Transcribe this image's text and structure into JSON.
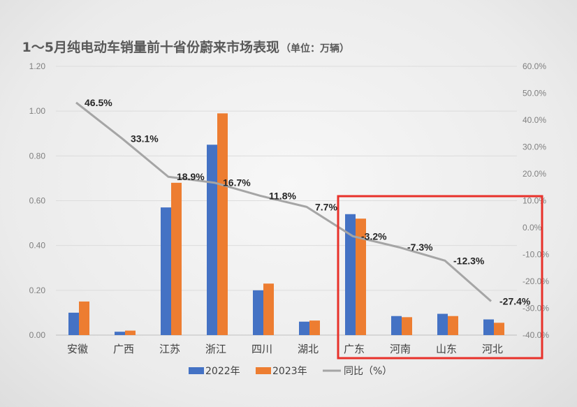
{
  "chart_data": {
    "type": "bar",
    "title": "1～5月纯电动车销量前十省份蔚来市场表现",
    "subtitle": "（单位：万辆）",
    "categories": [
      "安徽",
      "广西",
      "江苏",
      "浙江",
      "四川",
      "湖北",
      "广东",
      "河南",
      "山东",
      "河北"
    ],
    "series": [
      {
        "name": "2022年",
        "axis": "left",
        "color": "#4472c4",
        "values": [
          0.1,
          0.015,
          0.57,
          0.85,
          0.2,
          0.06,
          0.54,
          0.085,
          0.095,
          0.07
        ]
      },
      {
        "name": "2023年",
        "axis": "left",
        "color": "#ed7d31",
        "values": [
          0.15,
          0.02,
          0.68,
          0.99,
          0.23,
          0.065,
          0.52,
          0.08,
          0.085,
          0.055
        ]
      },
      {
        "name": "同比（%）",
        "axis": "right",
        "type": "line",
        "color": "#a5a5a5",
        "values": [
          46.5,
          33.1,
          18.9,
          16.7,
          11.8,
          7.7,
          -3.2,
          -7.3,
          -12.3,
          -27.4
        ]
      }
    ],
    "line_labels": [
      "46.5%",
      "33.1%",
      "18.9%",
      "16.7%",
      "11.8%",
      "7.7%",
      "-3.2%",
      "-7.3%",
      "-12.3%",
      "-27.4%"
    ],
    "left_ylim": [
      0,
      1.2
    ],
    "left_ticks": [
      "0.00",
      "0.20",
      "0.40",
      "0.60",
      "0.80",
      "1.00",
      "1.20"
    ],
    "right_ylim": [
      -40,
      60
    ],
    "right_ticks": [
      "-40.0%",
      "-30.0%",
      "-20.0%",
      "-10.0%",
      "0.0%",
      "10.0%",
      "20.0%",
      "30.0%",
      "40.0%",
      "50.0%",
      "60.0%"
    ],
    "grid": true,
    "legend_position": "bottom",
    "highlight": {
      "from_category": "广东",
      "to_category": "河北",
      "color": "#e8312a"
    }
  }
}
